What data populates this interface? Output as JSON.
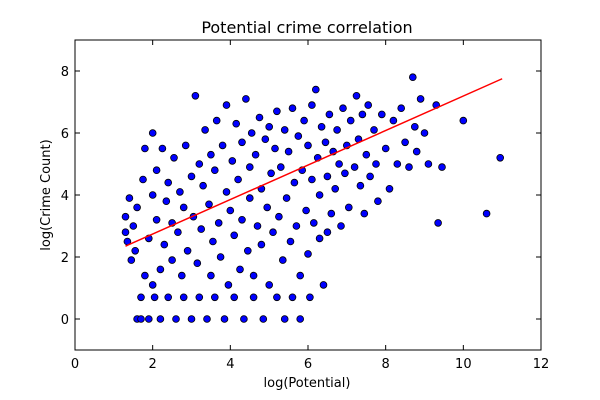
{
  "chart_data": {
    "type": "scatter",
    "title": "Potential crime correlation",
    "xlabel": "log(Potential)",
    "ylabel": "log(Crime Count)",
    "xlim": [
      0,
      12
    ],
    "ylim": [
      -1,
      9
    ],
    "xticks": [
      0,
      2,
      4,
      6,
      8,
      10,
      12
    ],
    "yticks": [
      0,
      2,
      4,
      6,
      8
    ],
    "grid": false,
    "point_color": "#0000ff",
    "point_edge_color": "#000000",
    "fit_line_color": "#ff0000",
    "series": [
      {
        "type": "scatter",
        "points": [
          [
            1.3,
            2.8
          ],
          [
            1.3,
            3.3
          ],
          [
            1.35,
            2.5
          ],
          [
            1.4,
            3.9
          ],
          [
            1.45,
            1.9
          ],
          [
            1.5,
            3.0
          ],
          [
            1.55,
            2.2
          ],
          [
            1.6,
            3.6
          ],
          [
            1.6,
            0.0
          ],
          [
            1.7,
            0.0
          ],
          [
            1.7,
            0.7
          ],
          [
            1.75,
            4.5
          ],
          [
            1.8,
            1.4
          ],
          [
            1.8,
            5.5
          ],
          [
            1.9,
            2.6
          ],
          [
            1.9,
            0.0
          ],
          [
            2.0,
            4.0
          ],
          [
            2.0,
            1.1
          ],
          [
            2.0,
            6.0
          ],
          [
            2.05,
            0.7
          ],
          [
            2.1,
            3.2
          ],
          [
            2.1,
            4.8
          ],
          [
            2.2,
            1.6
          ],
          [
            2.2,
            0.0
          ],
          [
            2.25,
            5.5
          ],
          [
            2.3,
            2.4
          ],
          [
            2.35,
            3.8
          ],
          [
            2.4,
            0.7
          ],
          [
            2.4,
            4.4
          ],
          [
            2.5,
            1.9
          ],
          [
            2.5,
            3.1
          ],
          [
            2.55,
            5.2
          ],
          [
            2.6,
            0.0
          ],
          [
            2.65,
            2.8
          ],
          [
            2.7,
            4.1
          ],
          [
            2.75,
            1.4
          ],
          [
            2.8,
            3.6
          ],
          [
            2.8,
            0.7
          ],
          [
            2.85,
            5.6
          ],
          [
            2.9,
            2.2
          ],
          [
            3.0,
            4.6
          ],
          [
            3.0,
            0.0
          ],
          [
            3.05,
            3.3
          ],
          [
            3.1,
            7.2
          ],
          [
            3.15,
            1.8
          ],
          [
            3.2,
            5.0
          ],
          [
            3.2,
            0.7
          ],
          [
            3.25,
            2.9
          ],
          [
            3.3,
            4.3
          ],
          [
            3.35,
            6.1
          ],
          [
            3.4,
            0.0
          ],
          [
            3.45,
            3.7
          ],
          [
            3.5,
            1.4
          ],
          [
            3.5,
            5.3
          ],
          [
            3.55,
            2.5
          ],
          [
            3.6,
            0.7
          ],
          [
            3.6,
            4.8
          ],
          [
            3.65,
            6.4
          ],
          [
            3.7,
            3.1
          ],
          [
            3.75,
            2.0
          ],
          [
            3.8,
            5.6
          ],
          [
            3.85,
            0.0
          ],
          [
            3.9,
            4.1
          ],
          [
            3.9,
            6.9
          ],
          [
            3.95,
            1.1
          ],
          [
            4.0,
            3.5
          ],
          [
            4.05,
            5.1
          ],
          [
            4.1,
            2.7
          ],
          [
            4.1,
            0.7
          ],
          [
            4.15,
            6.3
          ],
          [
            4.2,
            4.5
          ],
          [
            4.25,
            1.6
          ],
          [
            4.3,
            3.2
          ],
          [
            4.3,
            5.7
          ],
          [
            4.35,
            0.0
          ],
          [
            4.4,
            7.1
          ],
          [
            4.45,
            2.2
          ],
          [
            4.5,
            4.9
          ],
          [
            4.5,
            3.9
          ],
          [
            4.55,
            6.0
          ],
          [
            4.6,
            1.4
          ],
          [
            4.6,
            0.7
          ],
          [
            4.65,
            5.3
          ],
          [
            4.7,
            3.0
          ],
          [
            4.75,
            6.5
          ],
          [
            4.8,
            4.2
          ],
          [
            4.8,
            2.4
          ],
          [
            4.85,
            0.0
          ],
          [
            4.9,
            5.8
          ],
          [
            4.95,
            3.6
          ],
          [
            5.0,
            6.2
          ],
          [
            5.0,
            1.1
          ],
          [
            5.05,
            4.7
          ],
          [
            5.1,
            2.8
          ],
          [
            5.15,
            5.5
          ],
          [
            5.2,
            0.7
          ],
          [
            5.2,
            6.7
          ],
          [
            5.25,
            3.3
          ],
          [
            5.3,
            4.9
          ],
          [
            5.35,
            1.9
          ],
          [
            5.4,
            6.1
          ],
          [
            5.4,
            0.0
          ],
          [
            5.45,
            3.9
          ],
          [
            5.5,
            5.4
          ],
          [
            5.55,
            2.5
          ],
          [
            5.6,
            6.8
          ],
          [
            5.6,
            0.7
          ],
          [
            5.65,
            4.4
          ],
          [
            5.7,
            3.0
          ],
          [
            5.75,
            5.9
          ],
          [
            5.8,
            1.4
          ],
          [
            5.8,
            0.0
          ],
          [
            5.85,
            4.8
          ],
          [
            5.9,
            6.4
          ],
          [
            5.95,
            3.5
          ],
          [
            6.0,
            5.6
          ],
          [
            6.0,
            2.1
          ],
          [
            6.05,
            0.7
          ],
          [
            6.1,
            4.5
          ],
          [
            6.1,
            6.9
          ],
          [
            6.15,
            3.1
          ],
          [
            6.2,
            7.4
          ],
          [
            6.25,
            5.2
          ],
          [
            6.3,
            2.6
          ],
          [
            6.3,
            4.0
          ],
          [
            6.35,
            6.2
          ],
          [
            6.4,
            1.1
          ],
          [
            6.45,
            5.7
          ],
          [
            6.5,
            2.8
          ],
          [
            6.5,
            4.6
          ],
          [
            6.55,
            6.6
          ],
          [
            6.6,
            3.4
          ],
          [
            6.65,
            5.4
          ],
          [
            6.7,
            4.2
          ],
          [
            6.75,
            6.1
          ],
          [
            6.8,
            5.0
          ],
          [
            6.85,
            3.0
          ],
          [
            6.9,
            6.8
          ],
          [
            6.95,
            4.7
          ],
          [
            7.0,
            5.6
          ],
          [
            7.05,
            3.6
          ],
          [
            7.1,
            6.4
          ],
          [
            7.2,
            4.9
          ],
          [
            7.25,
            7.2
          ],
          [
            7.3,
            5.8
          ],
          [
            7.35,
            4.3
          ],
          [
            7.4,
            6.6
          ],
          [
            7.45,
            3.4
          ],
          [
            7.5,
            5.3
          ],
          [
            7.55,
            6.9
          ],
          [
            7.6,
            4.6
          ],
          [
            7.7,
            6.1
          ],
          [
            7.75,
            5.0
          ],
          [
            7.8,
            3.8
          ],
          [
            7.9,
            6.6
          ],
          [
            8.0,
            5.5
          ],
          [
            8.1,
            4.2
          ],
          [
            8.2,
            6.4
          ],
          [
            8.3,
            5.0
          ],
          [
            8.4,
            6.8
          ],
          [
            8.5,
            5.7
          ],
          [
            8.6,
            4.9
          ],
          [
            8.7,
            7.8
          ],
          [
            8.75,
            6.2
          ],
          [
            8.8,
            5.4
          ],
          [
            8.9,
            7.1
          ],
          [
            9.0,
            6.0
          ],
          [
            9.1,
            5.0
          ],
          [
            9.3,
            6.9
          ],
          [
            9.35,
            3.1
          ],
          [
            9.45,
            4.9
          ],
          [
            10.0,
            6.4
          ],
          [
            10.6,
            3.4
          ],
          [
            10.95,
            5.2
          ]
        ]
      },
      {
        "type": "line",
        "points": [
          [
            1.3,
            2.35
          ],
          [
            11.0,
            7.75
          ]
        ]
      }
    ]
  }
}
